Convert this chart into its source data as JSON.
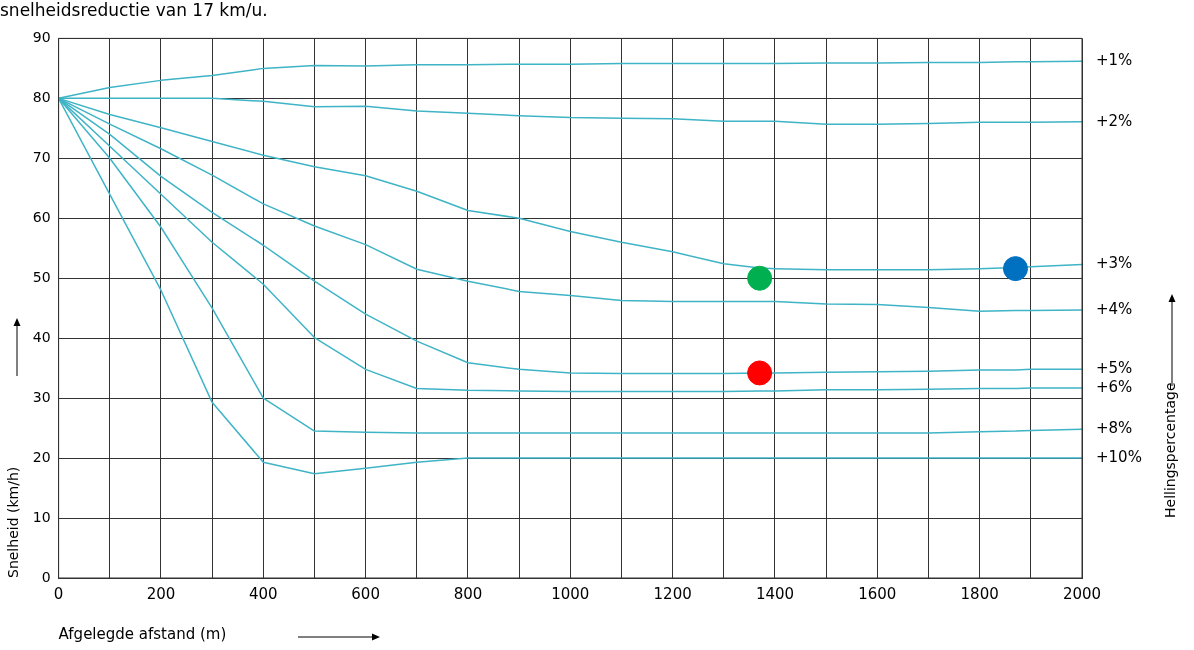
{
  "chart_data": {
    "type": "line",
    "title": "snelheidsreductie van 17 km/u.",
    "xlabel": "Afgelegde afstand (m)",
    "ylabel": "Snelheid (km/h)",
    "annotations": [
      "Hellingspercentage"
    ],
    "x": [
      0,
      100,
      200,
      300,
      400,
      500,
      600,
      700,
      800,
      900,
      1000,
      1100,
      1200,
      1300,
      1370,
      1400,
      1500,
      1600,
      1700,
      1800,
      1870,
      1900,
      2000
    ],
    "series": [
      {
        "name": "+1%",
        "color": "#3fb4c6",
        "values": [
          80,
          81.8,
          83,
          83.8,
          85,
          85.5,
          85.4,
          85.6,
          85.6,
          85.7,
          85.7,
          85.8,
          85.8,
          85.8,
          85.8,
          85.8,
          85.9,
          85.9,
          86,
          86,
          86.1,
          86.1,
          86.2
        ]
      },
      {
        "name": "+2%",
        "color": "#3fb4c6",
        "values": [
          80,
          80,
          80,
          80,
          79.5,
          78.6,
          78.7,
          77.9,
          77.5,
          77.1,
          76.8,
          76.7,
          76.6,
          76.2,
          76.2,
          76.2,
          75.7,
          75.7,
          75.8,
          76,
          76,
          76,
          76.1
        ]
      },
      {
        "name": "+3%",
        "color": "#3fb4c6",
        "values": [
          80,
          77.3,
          75.1,
          72.8,
          70.5,
          68.6,
          67.1,
          64.5,
          61.3,
          60,
          57.8,
          56,
          54.4,
          52.4,
          51.7,
          51.6,
          51.4,
          51.4,
          51.4,
          51.6,
          51.8,
          51.9,
          52.3
        ]
      },
      {
        "name": "+4%",
        "color": "#3fb4c6",
        "values": [
          80,
          75.7,
          71.6,
          67.2,
          62.4,
          58.7,
          55.6,
          51.5,
          49.5,
          47.8,
          47.1,
          46.3,
          46.1,
          46.1,
          46.1,
          46.1,
          45.7,
          45.6,
          45.1,
          44.5,
          44.6,
          44.6,
          44.7
        ]
      },
      {
        "name": "+5%",
        "color": "#3fb4c6",
        "values": [
          80,
          74,
          67,
          61,
          55.5,
          49.5,
          44,
          39.5,
          35.9,
          34.8,
          34.2,
          34.1,
          34.1,
          34.1,
          null,
          34.2,
          34.3,
          34.4,
          34.5,
          34.7,
          34.7,
          34.8,
          34.8
        ]
      },
      {
        "name": "+6%",
        "color": "#3fb4c6",
        "values": [
          80,
          72,
          64,
          56,
          49,
          40.1,
          34.8,
          31.6,
          31.3,
          31.2,
          31.1,
          31.1,
          31.1,
          31.1,
          31.2,
          31.2,
          31.4,
          31.4,
          31.5,
          31.6,
          31.6,
          31.7,
          31.7
        ]
      },
      {
        "name": "+8%",
        "color": "#3fb4c6",
        "values": [
          80,
          70,
          58.5,
          45,
          30,
          24.5,
          24.3,
          24.2,
          24.2,
          24.2,
          24.2,
          24.2,
          24.2,
          24.2,
          24.2,
          24.2,
          24.2,
          24.2,
          24.2,
          24.4,
          24.5,
          24.6,
          24.8
        ]
      },
      {
        "name": "+10%",
        "color": "#3fb4c6",
        "values": [
          80,
          64,
          48,
          29.3,
          19.3,
          17.4,
          18.3,
          19.3,
          20,
          20,
          20,
          20,
          20,
          20,
          20,
          20,
          20,
          20,
          20,
          20,
          20,
          20,
          20
        ]
      },
      {
        "type": "scatter",
        "color": "#00b050",
        "values": [
          null,
          null,
          null,
          null,
          null,
          null,
          null,
          null,
          null,
          null,
          null,
          null,
          null,
          null,
          50,
          null,
          null,
          null,
          null,
          null,
          null,
          null,
          null
        ]
      },
      {
        "type": "scatter",
        "color": "#ff0000",
        "values": [
          null,
          null,
          null,
          null,
          null,
          null,
          null,
          null,
          null,
          null,
          null,
          null,
          null,
          null,
          34.2,
          null,
          null,
          null,
          null,
          null,
          null,
          null,
          null
        ]
      },
      {
        "type": "scatter",
        "color": "#0070c0",
        "values": [
          null,
          null,
          null,
          null,
          null,
          null,
          null,
          null,
          null,
          null,
          null,
          null,
          null,
          null,
          null,
          null,
          null,
          null,
          null,
          null,
          51.6,
          null,
          null
        ]
      }
    ],
    "xlim": [
      0,
      2000
    ],
    "ylim": [
      0,
      90
    ],
    "xticks": [
      0,
      {
        "value": 100,
        "label": null
      },
      200,
      {
        "value": 300,
        "label": null
      },
      400,
      {
        "value": 500,
        "label": null
      },
      600,
      {
        "value": 700,
        "label": null
      },
      800,
      {
        "value": 900,
        "label": null
      },
      1000,
      {
        "value": 1100,
        "label": null
      },
      1200,
      {
        "value": 1300,
        "label": null
      },
      1400,
      {
        "value": 1500,
        "label": null
      },
      1600,
      {
        "value": 1700,
        "label": null
      },
      1800,
      {
        "value": 1900,
        "label": null
      },
      2000
    ],
    "yticks": [
      0,
      10,
      20,
      30,
      40,
      50,
      60,
      70,
      80,
      90
    ],
    "grid": true,
    "legend": false,
    "line_style": "solid"
  }
}
